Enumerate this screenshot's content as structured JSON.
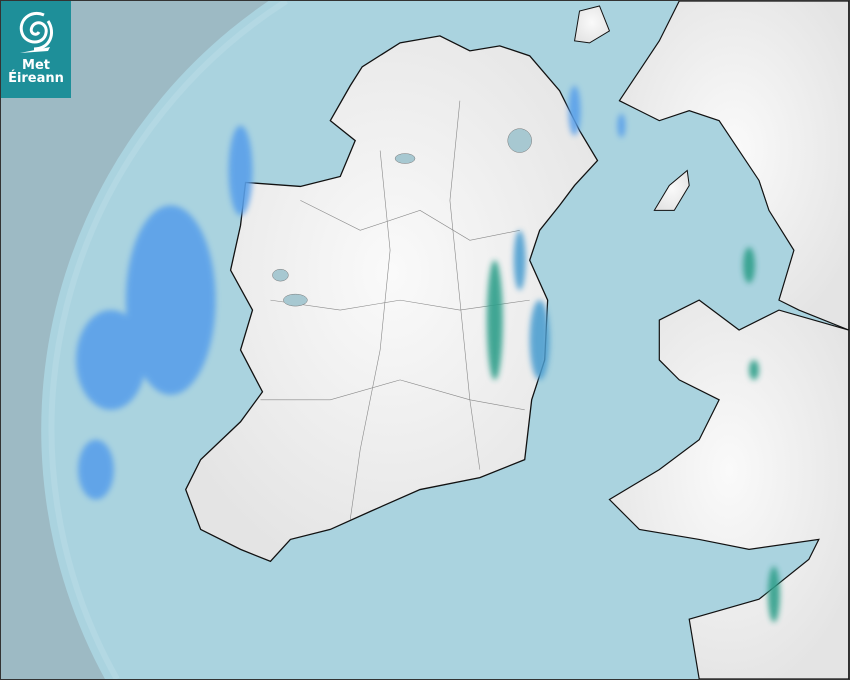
{
  "logo": {
    "line1": "Met",
    "line2": "Éireann",
    "color": "#1e8f99"
  },
  "map": {
    "type": "rainfall radar",
    "colors": {
      "outside_radar": "#9dbac4",
      "sea": "#aad3df",
      "land": "#f2f2f2",
      "light_rain": "#5aa0ea",
      "moderate_rain": "#2e9f8a"
    }
  }
}
